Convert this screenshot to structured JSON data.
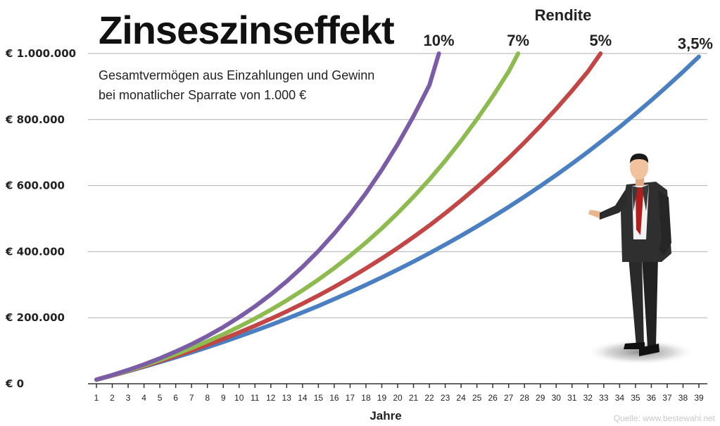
{
  "chart_data": {
    "type": "line",
    "title": "Zinseszinseffekt",
    "subtitle_lines": [
      "Gesamtvermögen aus Einzahlungen und Gewinn",
      "bei monatlicher Sparrate von 1.000 €"
    ],
    "xlabel": "Jahre",
    "ylabel": "",
    "legend_title": "Rendite",
    "legend_placement": "top-right",
    "x": [
      1,
      2,
      3,
      4,
      5,
      6,
      7,
      8,
      9,
      10,
      11,
      12,
      13,
      14,
      15,
      16,
      17,
      18,
      19,
      20,
      21,
      22,
      23,
      24,
      25,
      26,
      27,
      28,
      29,
      30,
      31,
      32,
      33,
      34,
      35,
      36,
      37,
      38,
      39
    ],
    "xlim": [
      1,
      39
    ],
    "ylim": [
      0,
      1000000
    ],
    "y_ticks": [
      0,
      200000,
      400000,
      600000,
      800000,
      1000000
    ],
    "y_tick_labels": [
      "€ 0",
      "€ 200.000",
      "€ 400.000",
      "€ 600.000",
      "€ 800.000",
      "€ 1.000.000"
    ],
    "grid": true,
    "series": [
      {
        "name": "10%",
        "color": "#7a5ca7",
        "x": [
          1,
          2,
          3,
          4,
          5,
          6,
          7,
          8,
          9,
          10,
          11,
          12,
          13,
          14,
          15,
          16,
          17,
          18,
          19,
          20,
          21,
          22,
          22.6
        ],
        "values": [
          12600,
          26500,
          41700,
          58500,
          77000,
          97400,
          119800,
          144400,
          171500,
          201400,
          234100,
          270300,
          310000,
          353800,
          402000,
          455000,
          513000,
          577000,
          647700,
          725000,
          810000,
          904000,
          1000000
        ]
      },
      {
        "name": "7%",
        "color": "#8dbb4f",
        "x": [
          1,
          2,
          3,
          4,
          5,
          6,
          7,
          8,
          9,
          10,
          11,
          12,
          13,
          14,
          15,
          16,
          17,
          18,
          19,
          20,
          21,
          22,
          23,
          24,
          25,
          26,
          27,
          27.6
        ],
        "values": [
          12400,
          25700,
          40000,
          55300,
          71600,
          89200,
          108000,
          128100,
          149600,
          172700,
          197400,
          223900,
          252300,
          282700,
          315300,
          350200,
          387600,
          427600,
          470500,
          516600,
          565800,
          618600,
          675200,
          735900,
          800900,
          870500,
          945200,
          1000000
        ]
      },
      {
        "name": "5%",
        "color": "#c24646",
        "x": [
          1,
          2,
          3,
          4,
          5,
          6,
          7,
          8,
          9,
          10,
          11,
          12,
          13,
          14,
          15,
          16,
          17,
          18,
          19,
          20,
          21,
          22,
          23,
          24,
          25,
          26,
          27,
          28,
          29,
          30,
          31,
          32,
          32.8
        ],
        "values": [
          12300,
          25200,
          38800,
          53000,
          68000,
          83700,
          100300,
          117700,
          135900,
          155200,
          175400,
          196700,
          219000,
          242500,
          267200,
          293200,
          320500,
          349200,
          379400,
          411100,
          444400,
          479400,
          516300,
          555000,
          595700,
          638500,
          683400,
          730700,
          780400,
          832600,
          887400,
          945100,
          1000000
        ]
      },
      {
        "name": "3,5%",
        "color": "#4a7fc1",
        "x": [
          1,
          2,
          3,
          4,
          5,
          6,
          7,
          8,
          9,
          10,
          11,
          12,
          13,
          14,
          15,
          16,
          17,
          18,
          19,
          20,
          21,
          22,
          23,
          24,
          25,
          26,
          27,
          28,
          29,
          30,
          31,
          32,
          33,
          34,
          35,
          36,
          37,
          38,
          39
        ],
        "values": [
          12200,
          24800,
          37900,
          51400,
          65400,
          79900,
          94900,
          110500,
          126600,
          143200,
          160500,
          178300,
          196800,
          215900,
          235700,
          256200,
          277400,
          299400,
          322100,
          345700,
          370000,
          395300,
          421400,
          448400,
          476400,
          505400,
          535400,
          566500,
          598700,
          632000,
          666500,
          702200,
          739200,
          777500,
          817200,
          858200,
          900800,
          944800,
          990400
        ]
      }
    ]
  },
  "source_text": "Quelle: www.bestewahl.net"
}
